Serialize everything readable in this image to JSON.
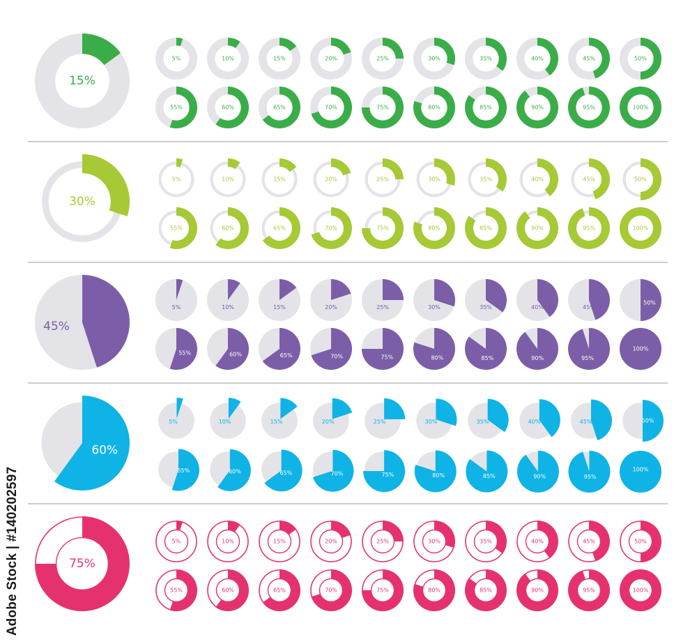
{
  "watermark_text": "Adobe Stock | #140202597",
  "colors": {
    "track": "#e3e3e8",
    "green": "#3aad48",
    "lime": "#a6c935",
    "purple": "#7b5ea7",
    "blue": "#0fb3e6",
    "pink": "#e5326f",
    "divider": "#9a9a9a"
  },
  "chart_data": [
    {
      "type": "pie",
      "name": "green-donut-set",
      "style": "donut-filled-track",
      "color": "green",
      "hero": {
        "value": 15,
        "label": "15%"
      },
      "values": [
        5,
        10,
        15,
        20,
        25,
        30,
        35,
        40,
        45,
        50,
        55,
        60,
        65,
        70,
        75,
        80,
        85,
        90,
        95,
        100
      ],
      "labels": [
        "5%",
        "10%",
        "15%",
        "20%",
        "25%",
        "30%",
        "35%",
        "40%",
        "45%",
        "50%",
        "55%",
        "60%",
        "65%",
        "70%",
        "75%",
        "80%",
        "85%",
        "90%",
        "95%",
        "100%"
      ]
    },
    {
      "type": "pie",
      "name": "lime-ring-set",
      "style": "thin-track-thick-arc",
      "color": "lime",
      "hero": {
        "value": 30,
        "label": "30%"
      },
      "values": [
        5,
        10,
        15,
        20,
        25,
        30,
        35,
        40,
        45,
        50,
        55,
        60,
        65,
        70,
        75,
        80,
        85,
        90,
        95,
        100
      ],
      "labels": [
        "5%",
        "10%",
        "15%",
        "20%",
        "25%",
        "30%",
        "35%",
        "40%",
        "45%",
        "50%",
        "55%",
        "60%",
        "65%",
        "70%",
        "75%",
        "80%",
        "85%",
        "90%",
        "95%",
        "100%"
      ]
    },
    {
      "type": "pie",
      "name": "purple-pie-set",
      "style": "pie",
      "color": "purple",
      "hero": {
        "value": 45,
        "label": "45%"
      },
      "values": [
        5,
        10,
        15,
        20,
        25,
        30,
        35,
        40,
        45,
        50,
        55,
        60,
        65,
        70,
        75,
        80,
        85,
        90,
        95,
        100
      ],
      "labels": [
        "5%",
        "10%",
        "15%",
        "20%",
        "25%",
        "30%",
        "35%",
        "40%",
        "45%",
        "50%",
        "55%",
        "60%",
        "65%",
        "70%",
        "75%",
        "80%",
        "85%",
        "90%",
        "95%",
        "100%"
      ]
    },
    {
      "type": "pie",
      "name": "blue-pie-set",
      "style": "pie-exploded",
      "color": "blue",
      "hero": {
        "value": 60,
        "label": "60%"
      },
      "values": [
        5,
        10,
        15,
        20,
        25,
        30,
        35,
        40,
        45,
        50,
        55,
        60,
        65,
        70,
        75,
        80,
        85,
        90,
        95,
        100
      ],
      "labels": [
        "5%",
        "10%",
        "15%",
        "20%",
        "25%",
        "30%",
        "35%",
        "40%",
        "45%",
        "50%",
        "55%",
        "60%",
        "65%",
        "70%",
        "75%",
        "80%",
        "85%",
        "90%",
        "95%",
        "100%"
      ]
    },
    {
      "type": "pie",
      "name": "pink-donut-set",
      "style": "outlined-donut",
      "color": "pink",
      "hero": {
        "value": 75,
        "label": "75%"
      },
      "values": [
        5,
        10,
        15,
        20,
        25,
        30,
        35,
        40,
        45,
        50,
        55,
        60,
        65,
        70,
        75,
        80,
        85,
        90,
        95,
        100
      ],
      "labels": [
        "5%",
        "10%",
        "15%",
        "20%",
        "25%",
        "30%",
        "35%",
        "40%",
        "45%",
        "50%",
        "55%",
        "60%",
        "65%",
        "70%",
        "75%",
        "80%",
        "85%",
        "90%",
        "95%",
        "100%"
      ]
    }
  ]
}
